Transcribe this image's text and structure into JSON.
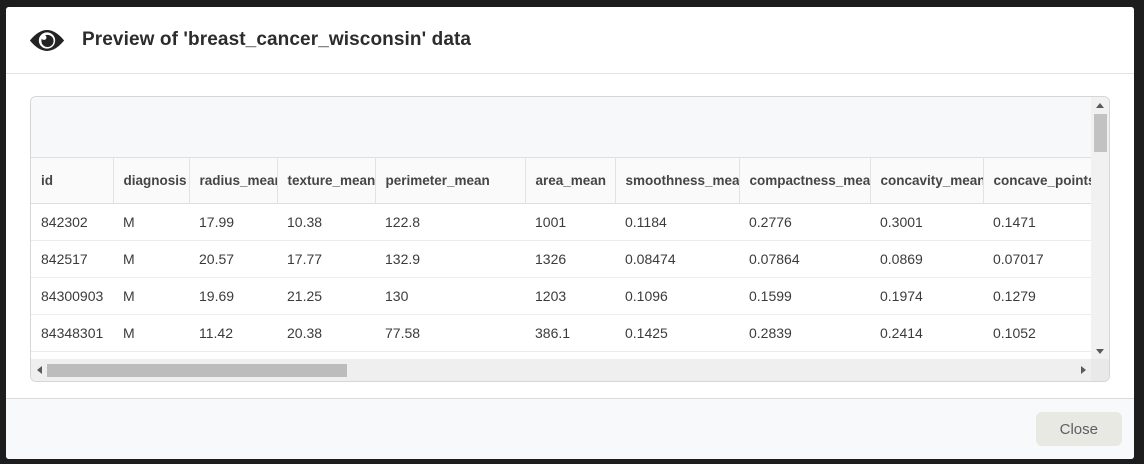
{
  "modal": {
    "header": {
      "icon": "eye-icon",
      "title": "Preview of 'breast_cancer_wisconsin' data"
    },
    "footer": {
      "close_label": "Close"
    }
  },
  "table": {
    "columns": [
      "id",
      "diagnosis",
      "radius_mean",
      "texture_mean",
      "perimeter_mean",
      "area_mean",
      "smoothness_mean",
      "compactness_mean",
      "concavity_mean",
      "concave_points_mean"
    ],
    "rows": [
      [
        "842302",
        "M",
        "17.99",
        "10.38",
        "122.8",
        "1001",
        "0.1184",
        "0.2776",
        "0.3001",
        "0.1471"
      ],
      [
        "842517",
        "M",
        "20.57",
        "17.77",
        "132.9",
        "1326",
        "0.08474",
        "0.07864",
        "0.0869",
        "0.07017"
      ],
      [
        "84300903",
        "M",
        "19.69",
        "21.25",
        "130",
        "1203",
        "0.1096",
        "0.1599",
        "0.1974",
        "0.1279"
      ],
      [
        "84348301",
        "M",
        "11.42",
        "20.38",
        "77.58",
        "386.1",
        "0.1425",
        "0.2839",
        "0.2414",
        "0.1052"
      ]
    ]
  },
  "colors": {
    "frame_backdrop": "#1d1d1d",
    "header_row_bg": "#fafafa",
    "footer_bg": "#f8f9fa",
    "close_button_bg": "#e8e9e3",
    "scroll_thumb": "#c2c2c2",
    "scroll_track": "#f1f1f1"
  }
}
